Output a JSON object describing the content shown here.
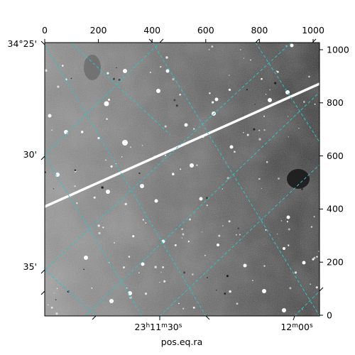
{
  "figure": {
    "xlabel": "pos.eq.ra",
    "top_ticks": [
      "0",
      "200",
      "400",
      "600",
      "800",
      "1000"
    ],
    "right_ticks": [
      "0",
      "200",
      "400",
      "600",
      "800",
      "1000"
    ],
    "dec_ticks": [
      "34°25'",
      "30'",
      "35'"
    ],
    "ra_ticks": [
      {
        "h": "23",
        "m": "11",
        "s": "30",
        "hs": "h",
        "ms": "m",
        "ss": "s"
      },
      {
        "h": "",
        "m": "12",
        "s": "00",
        "hs": "",
        "ms": "m",
        "ss": "s"
      }
    ],
    "grid_color": "#2ec4c4",
    "streak": "satellite trail"
  }
}
